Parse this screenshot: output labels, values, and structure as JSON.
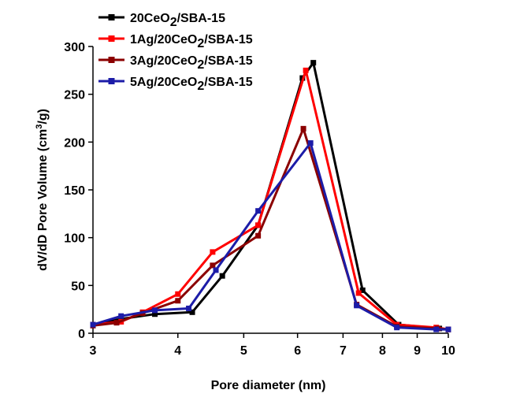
{
  "chart_data": {
    "type": "line",
    "xlabel": "Pore diameter (nm)",
    "ylabel": {
      "main": "dV/dD Pore Volume (cm",
      "sup": "3",
      "tail": "/g)"
    },
    "x_scale": "log",
    "xlim": [
      3,
      10
    ],
    "ylim": [
      0,
      300
    ],
    "x_ticks": [
      3,
      4,
      5,
      6,
      7,
      8,
      9,
      10
    ],
    "y_ticks": [
      0,
      50,
      100,
      150,
      200,
      250,
      300
    ],
    "grid": false,
    "legend_placement": "top-left",
    "series": [
      {
        "name": {
          "a": "20CeO",
          "sub": "2",
          "b": "/SBA-15"
        },
        "color": "#000000",
        "marker": "square",
        "points": [
          [
            3.0,
            9
          ],
          [
            3.3,
            15
          ],
          [
            3.7,
            20
          ],
          [
            4.2,
            22
          ],
          [
            4.65,
            60
          ],
          [
            5.25,
            113
          ],
          [
            6.1,
            267
          ],
          [
            6.33,
            283
          ],
          [
            7.48,
            45
          ],
          [
            8.45,
            9
          ],
          [
            9.7,
            5
          ],
          [
            10.0,
            4
          ]
        ]
      },
      {
        "name": {
          "a": "1Ag/20CeO",
          "sub": "2",
          "b": "/SBA-15"
        },
        "color": "#ff0000",
        "marker": "square",
        "points": [
          [
            3.0,
            9
          ],
          [
            3.3,
            12
          ],
          [
            3.55,
            22
          ],
          [
            4.0,
            41
          ],
          [
            4.5,
            85
          ],
          [
            5.25,
            113
          ],
          [
            6.17,
            275
          ],
          [
            7.38,
            42
          ],
          [
            8.4,
            9
          ],
          [
            9.6,
            6
          ],
          [
            10.0,
            4
          ]
        ]
      },
      {
        "name": {
          "a": "3Ag/20CeO",
          "sub": "2",
          "b": "/SBA-15"
        },
        "color": "#8b0000",
        "marker": "square",
        "points": [
          [
            3.0,
            8
          ],
          [
            3.25,
            11
          ],
          [
            3.55,
            21
          ],
          [
            4.0,
            34
          ],
          [
            4.5,
            71
          ],
          [
            5.25,
            102
          ],
          [
            6.12,
            214
          ],
          [
            7.33,
            30
          ],
          [
            8.4,
            7
          ],
          [
            9.65,
            5
          ],
          [
            10.0,
            4
          ]
        ]
      },
      {
        "name": {
          "a": "5Ag/20CeO",
          "sub": "2",
          "b": "/SBA-15"
        },
        "color": "#1c1ca8",
        "marker": "square",
        "points": [
          [
            3.0,
            9
          ],
          [
            3.3,
            18
          ],
          [
            3.7,
            24
          ],
          [
            4.15,
            26
          ],
          [
            4.55,
            66
          ],
          [
            5.25,
            128
          ],
          [
            6.27,
            199
          ],
          [
            7.33,
            29
          ],
          [
            8.4,
            6
          ],
          [
            9.6,
            4
          ],
          [
            10.0,
            4
          ]
        ]
      }
    ]
  }
}
